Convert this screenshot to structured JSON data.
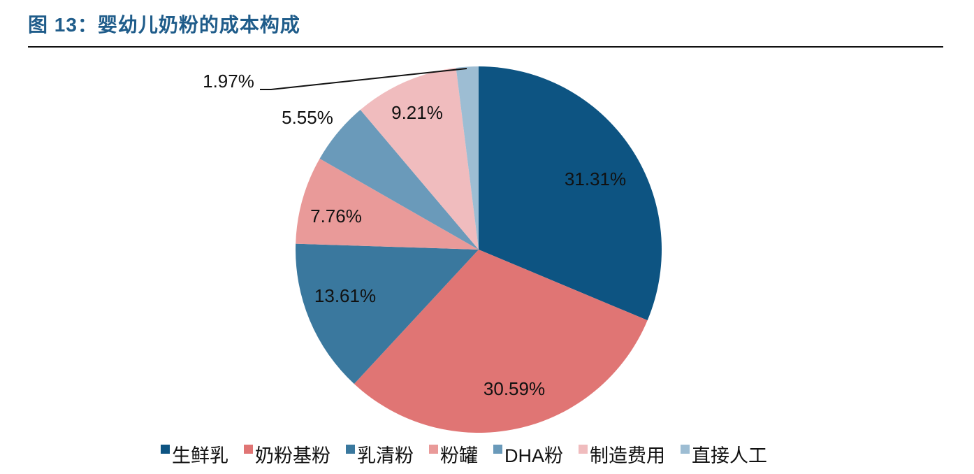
{
  "header": {
    "title": "图 13：婴幼儿奶粉的成本构成"
  },
  "chart_data": {
    "type": "pie",
    "title": "图 13：婴幼儿奶粉的成本构成",
    "categories": [
      "生鲜乳",
      "奶粉基粉",
      "乳清粉",
      "粉罐",
      "DHA粉",
      "制造费用",
      "直接人工"
    ],
    "values": [
      31.31,
      30.59,
      13.61,
      7.76,
      5.55,
      9.21,
      1.97
    ],
    "labels": [
      "31.31%",
      "30.59%",
      "13.61%",
      "7.76%",
      "5.55%",
      "9.21%",
      "1.97%"
    ],
    "colors": [
      "#0d5482",
      "#e07574",
      "#3a789e",
      "#e99a99",
      "#6a9aba",
      "#f0bcbe",
      "#9dbdd3"
    ],
    "start_angle": "12 o'clock",
    "direction": "clockwise",
    "legend_position": "bottom",
    "xlabel": "",
    "ylabel": ""
  },
  "legend": {
    "items": [
      {
        "label": "生鲜乳",
        "color": "#0d5482"
      },
      {
        "label": "奶粉基粉",
        "color": "#e07574"
      },
      {
        "label": "乳清粉",
        "color": "#3a789e"
      },
      {
        "label": "粉罐",
        "color": "#e99a99"
      },
      {
        "label": "DHA粉",
        "color": "#6a9aba"
      },
      {
        "label": "制造费用",
        "color": "#f0bcbe"
      },
      {
        "label": "直接人工",
        "color": "#9dbdd3"
      }
    ]
  }
}
